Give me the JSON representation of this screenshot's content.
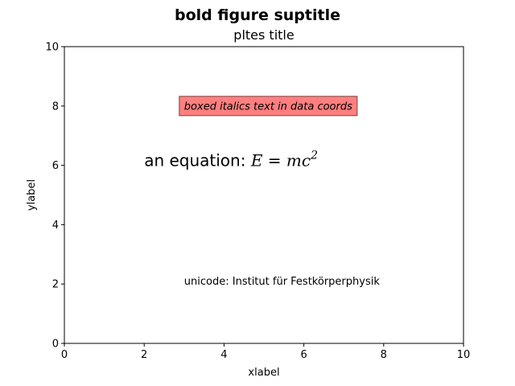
{
  "figure": {
    "suptitle": "bold figure suptitle"
  },
  "chart_data": {
    "type": "scatter",
    "title": "pltes title",
    "xlabel": "xlabel",
    "ylabel": "ylabel",
    "xlim": [
      0,
      10
    ],
    "ylim": [
      0,
      10
    ],
    "x_ticks": [
      0,
      2,
      4,
      6,
      8,
      10
    ],
    "y_ticks": [
      0,
      2,
      4,
      6,
      8,
      10
    ],
    "grid": false,
    "series": [],
    "annotations": [
      {
        "id": "boxed",
        "x": 3,
        "y": 8,
        "text": "boxed italics text in data coords",
        "style": "italic",
        "box_color": "#ff7f7f"
      },
      {
        "id": "equation",
        "x": 2,
        "y": 6,
        "text_prefix": "an equation: ",
        "math_lhs": "E",
        "math_eq": " = ",
        "math_rhs": "mc",
        "math_exp": "2"
      },
      {
        "id": "unicode",
        "x": 3,
        "y": 2,
        "text": "unicode: Institut für Festkörperphysik"
      }
    ]
  },
  "colors": {
    "axes_edge": "#000000",
    "box_fill": "#ff7f7f",
    "box_edge": "#7f4040"
  }
}
